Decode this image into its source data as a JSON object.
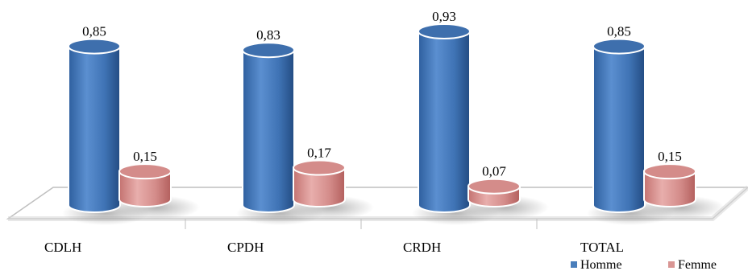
{
  "chart_data": {
    "type": "bar",
    "style": "3d-cylinder",
    "categories": [
      "CDLH",
      "CPDH",
      "CRDH",
      "TOTAL"
    ],
    "series": [
      {
        "name": "Homme",
        "values": [
          "0,85",
          "0,83",
          "0,93",
          "0,85"
        ],
        "numeric": [
          0.85,
          0.83,
          0.93,
          0.85
        ],
        "color": "#4a7ebb"
      },
      {
        "name": "Femme",
        "values": [
          "0,15",
          "0,17",
          "0,07",
          "0,15"
        ],
        "numeric": [
          0.15,
          0.17,
          0.07,
          0.15
        ],
        "color": "#d99694"
      }
    ],
    "title": "",
    "xlabel": "",
    "ylabel": "",
    "ylim": [
      0,
      1
    ],
    "grid": false,
    "legend_position": "bottom-right",
    "data_labels": true
  }
}
